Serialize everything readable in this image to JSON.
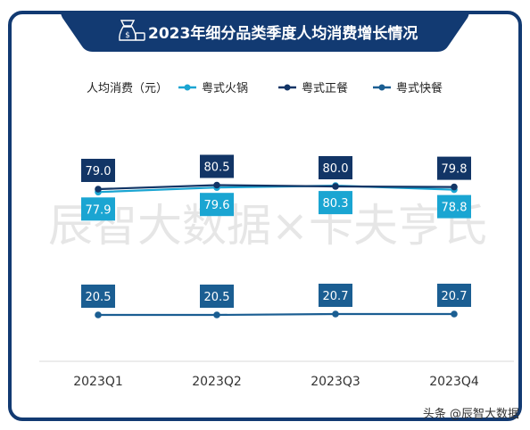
{
  "chart_data": {
    "type": "line",
    "title": "2023年细分品类季度人均消费增长情况",
    "ylabel": "人均消费（元）",
    "categories": [
      "2023Q1",
      "2023Q2",
      "2023Q3",
      "2023Q4"
    ],
    "series": [
      {
        "name": "粤式火锅",
        "values": [
          77.9,
          79.6,
          80.3,
          78.8
        ],
        "color": "#1aa5d2",
        "label_position": "below"
      },
      {
        "name": "粤式正餐",
        "values": [
          79.0,
          80.5,
          80.0,
          79.8
        ],
        "color": "#123566",
        "label_position": "above"
      },
      {
        "name": "粤式快餐",
        "values": [
          20.5,
          20.5,
          20.7,
          20.7
        ],
        "color": "#1b5e92",
        "label_position": "above"
      }
    ],
    "ylim": [
      0,
      100
    ],
    "legend_position": "top",
    "grid": false
  },
  "watermark": "辰智大数据×卡夫亨氏",
  "footer": "头条 @辰智大数据",
  "colors": {
    "frame": "#123a72",
    "background": "#ffffff"
  },
  "icons": {
    "title_icon": "money-bag-icon"
  }
}
